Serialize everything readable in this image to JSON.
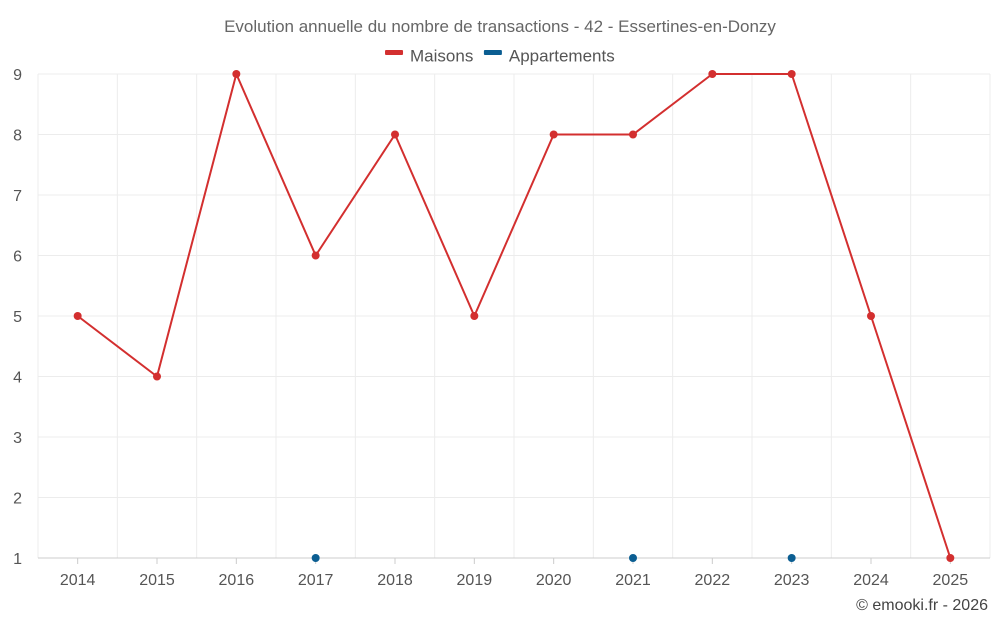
{
  "chart_data": {
    "type": "line",
    "title": "Evolution annuelle du nombre de transactions - 42 - Essertines-en-Donzy",
    "xlabel": "",
    "ylabel": "",
    "categories": [
      "2014",
      "2015",
      "2016",
      "2017",
      "2018",
      "2019",
      "2020",
      "2021",
      "2022",
      "2023",
      "2024",
      "2025"
    ],
    "ylim": [
      1,
      9
    ],
    "yticks": [
      "1",
      "2",
      "3",
      "4",
      "5",
      "6",
      "7",
      "8",
      "9"
    ],
    "grid": true,
    "legend_position": "top-center",
    "series": [
      {
        "name": "Maisons",
        "color": "#d32f2f",
        "values": [
          5,
          4,
          9,
          6,
          8,
          5,
          8,
          8,
          9,
          9,
          5,
          1
        ]
      },
      {
        "name": "Appartements",
        "color": "#0b5e92",
        "values": [
          null,
          null,
          null,
          1,
          null,
          null,
          null,
          1,
          null,
          1,
          null,
          null
        ]
      }
    ]
  },
  "credit": "© emooki.fr - 2026"
}
